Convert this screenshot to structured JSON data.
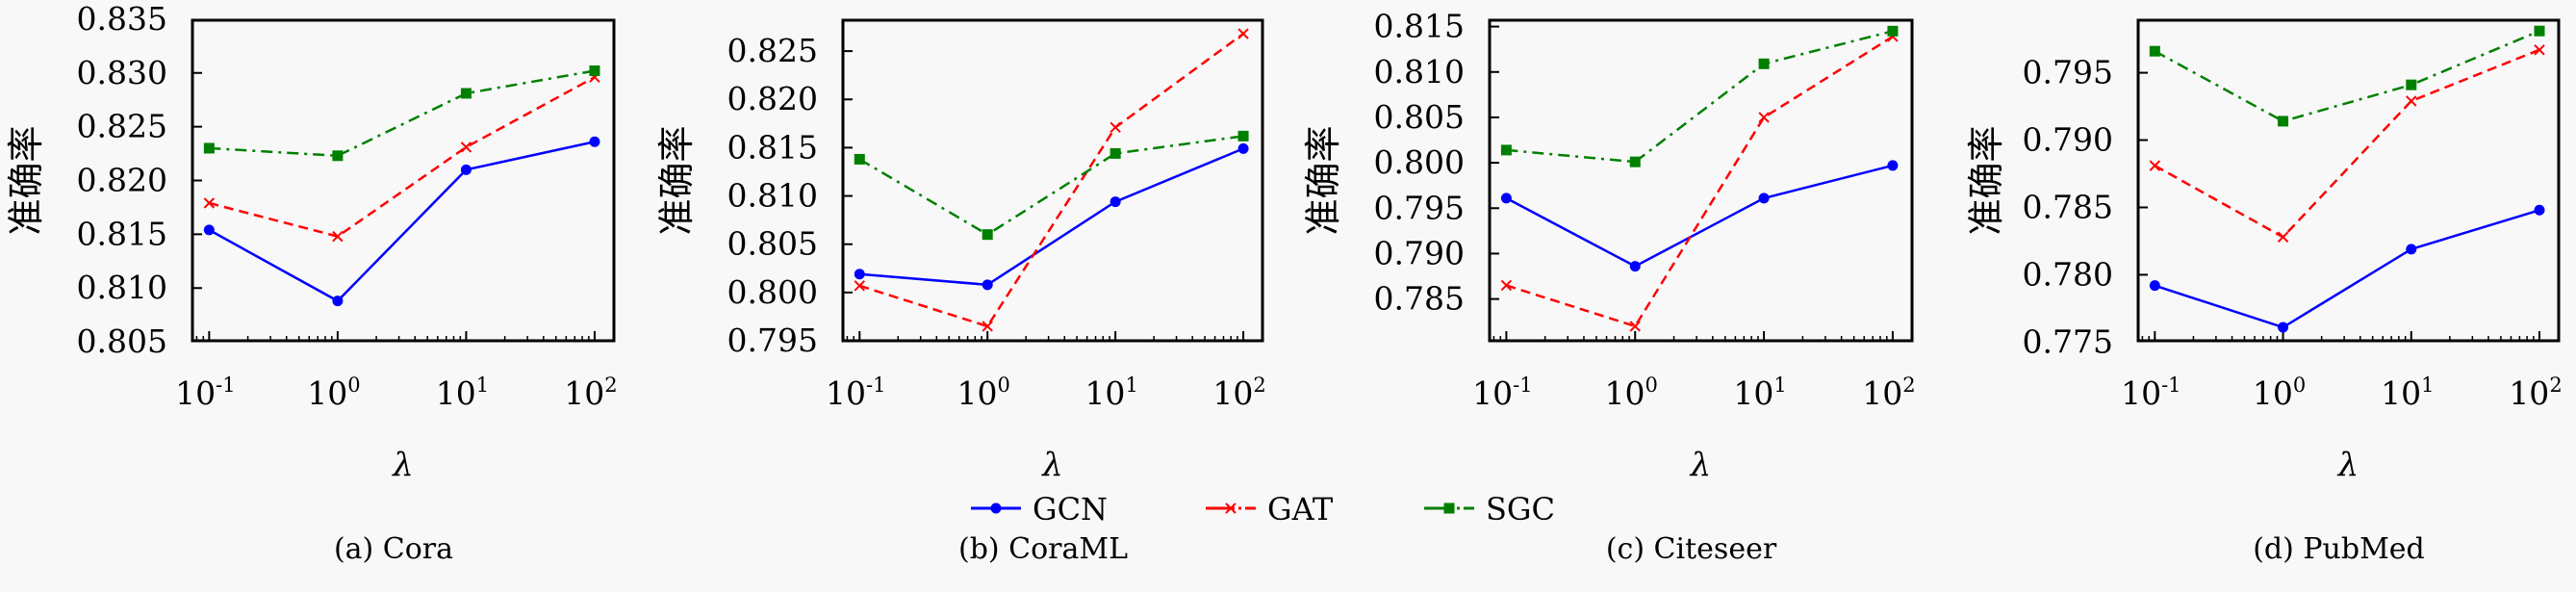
{
  "legend": {
    "placement": "bottom-center",
    "entries": [
      {
        "name": "GCN",
        "color": "#0000ff",
        "marker": "circle",
        "dash": "solid"
      },
      {
        "name": "GAT",
        "color": "#ff0000",
        "marker": "x",
        "dash": "dashed"
      },
      {
        "name": "SGC",
        "color": "#008000",
        "marker": "square",
        "dash": "dashdot"
      }
    ]
  },
  "chart_data": [
    {
      "type": "line",
      "caption": "(a) Cora",
      "xlabel": "λ",
      "ylabel": "准确率",
      "xscale": "log",
      "x": [
        0.1,
        1,
        10,
        100
      ],
      "xtick_labels": [
        {
          "base": "10",
          "exp": "-1"
        },
        {
          "base": "10",
          "exp": "0"
        },
        {
          "base": "10",
          "exp": "1"
        },
        {
          "base": "10",
          "exp": "2"
        }
      ],
      "ylim": [
        0.8051,
        0.8349
      ],
      "yticks": [
        0.805,
        0.81,
        0.815,
        0.82,
        0.825,
        0.83,
        0.835
      ],
      "ytick_labels": [
        "0.805",
        "0.810",
        "0.815",
        "0.820",
        "0.825",
        "0.830",
        "0.835"
      ],
      "grid": false,
      "series": [
        {
          "name": "GCN",
          "values": [
            0.8154,
            0.8088,
            0.821,
            0.8236
          ]
        },
        {
          "name": "GAT",
          "values": [
            0.8179,
            0.8148,
            0.8231,
            0.8296
          ]
        },
        {
          "name": "SGC",
          "values": [
            0.823,
            0.8223,
            0.8281,
            0.8302
          ]
        }
      ]
    },
    {
      "type": "line",
      "caption": "(b) CoraML",
      "xlabel": "λ",
      "ylabel": "准确率",
      "xscale": "log",
      "x": [
        0.1,
        1,
        10,
        100
      ],
      "xtick_labels": [
        {
          "base": "10",
          "exp": "-1"
        },
        {
          "base": "10",
          "exp": "0"
        },
        {
          "base": "10",
          "exp": "1"
        },
        {
          "base": "10",
          "exp": "2"
        }
      ],
      "ylim": [
        0.795,
        0.8282
      ],
      "yticks": [
        0.795,
        0.8,
        0.805,
        0.81,
        0.815,
        0.82,
        0.825
      ],
      "ytick_labels": [
        "0.795",
        "0.800",
        "0.805",
        "0.810",
        "0.815",
        "0.820",
        "0.825"
      ],
      "grid": false,
      "series": [
        {
          "name": "GCN",
          "values": [
            0.8019,
            0.8008,
            0.8094,
            0.8149
          ]
        },
        {
          "name": "GAT",
          "values": [
            0.8007,
            0.7965,
            0.8171,
            0.8268
          ]
        },
        {
          "name": "SGC",
          "values": [
            0.8138,
            0.806,
            0.8144,
            0.8162
          ]
        }
      ]
    },
    {
      "type": "line",
      "caption": "(c) Citeseer",
      "xlabel": "λ",
      "ylabel": "准确率",
      "xscale": "log",
      "x": [
        0.1,
        1,
        10,
        100
      ],
      "xtick_labels": [
        {
          "base": "10",
          "exp": "-1"
        },
        {
          "base": "10",
          "exp": "0"
        },
        {
          "base": "10",
          "exp": "1"
        },
        {
          "base": "10",
          "exp": "2"
        }
      ],
      "ylim": [
        0.7804,
        0.8157
      ],
      "yticks": [
        0.785,
        0.79,
        0.795,
        0.8,
        0.805,
        0.81,
        0.815
      ],
      "ytick_labels": [
        "0.785",
        "0.790",
        "0.795",
        "0.800",
        "0.805",
        "0.810",
        "0.815"
      ],
      "grid": false,
      "series": [
        {
          "name": "GCN",
          "values": [
            0.7961,
            0.7886,
            0.7961,
            0.7997
          ]
        },
        {
          "name": "GAT",
          "values": [
            0.7865,
            0.782,
            0.805,
            0.8139
          ]
        },
        {
          "name": "SGC",
          "values": [
            0.8014,
            0.8001,
            0.8109,
            0.8145
          ]
        }
      ]
    },
    {
      "type": "line",
      "caption": "(d) PubMed",
      "xlabel": "λ",
      "ylabel": "准确率",
      "xscale": "log",
      "x": [
        0.1,
        1,
        10,
        100
      ],
      "xtick_labels": [
        {
          "base": "10",
          "exp": "-1"
        },
        {
          "base": "10",
          "exp": "0"
        },
        {
          "base": "10",
          "exp": "1"
        },
        {
          "base": "10",
          "exp": "2"
        }
      ],
      "ylim": [
        0.7751,
        0.7989
      ],
      "yticks": [
        0.775,
        0.78,
        0.785,
        0.79,
        0.795
      ],
      "ytick_labels": [
        "0.775",
        "0.780",
        "0.785",
        "0.790",
        "0.795"
      ],
      "grid": false,
      "series": [
        {
          "name": "GCN",
          "values": [
            0.7792,
            0.7761,
            0.7819,
            0.7848
          ]
        },
        {
          "name": "GAT",
          "values": [
            0.7881,
            0.7828,
            0.7929,
            0.7967
          ]
        },
        {
          "name": "SGC",
          "values": [
            0.7966,
            0.7914,
            0.7941,
            0.7981
          ]
        }
      ]
    }
  ]
}
